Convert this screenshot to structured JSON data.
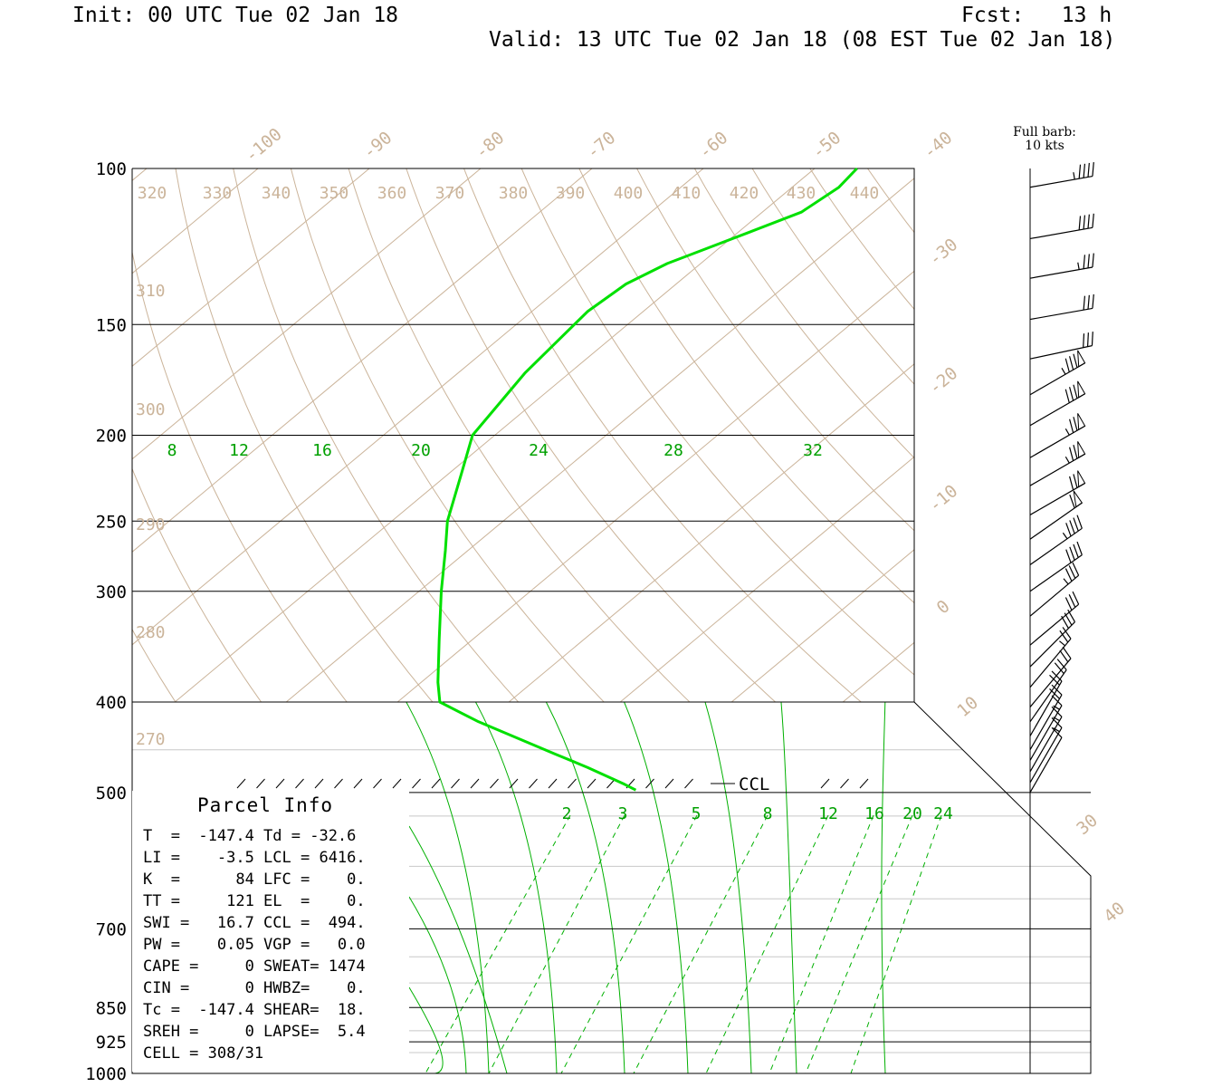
{
  "header": {
    "init": "Init: 00 UTC Tue 02 Jan 18",
    "fcst": "Fcst:   13 h",
    "valid": "Valid: 13 UTC Tue 02 Jan 18 (08 EST Tue 02 Jan 18)"
  },
  "barb_note": {
    "line1": "Full barb:",
    "line2": "10 kts"
  },
  "parcel_info": {
    "title": "Parcel Info",
    "rows": [
      "T  =  -147.4 Td = -32.6",
      "LI =    -3.5 LCL = 6416.",
      "K  =      84 LFC =    0.",
      "TT =     121 EL  =    0.",
      "SWI =   16.7 CCL =  494.",
      "PW =    0.05 VGP =   0.0",
      "CAPE =     0 SWEAT= 1474",
      "CIN =      0 HWBZ=    0.",
      "Tc =  -147.4 SHEAR=  18.",
      "SREH =     0 LAPSE=  5.4",
      "CELL = 308/31"
    ]
  },
  "chart_data": {
    "type": "line",
    "diagram": "skew-T log-p",
    "yaxis_pressure_hPa": [
      100,
      150,
      200,
      250,
      300,
      400,
      500,
      700,
      850,
      925,
      1000
    ],
    "isotherm_labels_C": [
      "-100",
      "-90",
      "-80",
      "-70",
      "-60",
      "-50",
      "-40",
      "-30",
      "-20",
      "-10",
      "0",
      "10",
      "30",
      "40"
    ],
    "isotherm_values_C": [
      -100,
      -90,
      -80,
      -70,
      -60,
      -50,
      -40,
      -30,
      -20,
      -10,
      0,
      10,
      30,
      40
    ],
    "theta_labels_K": [
      "320",
      "330",
      "340",
      "350",
      "360",
      "370",
      "380",
      "390",
      "400",
      "410",
      "420",
      "430",
      "440"
    ],
    "theta_left_labels_K": [
      "310",
      "300",
      "290",
      "280",
      "270"
    ],
    "moist_adiabat_labels": [
      "8",
      "12",
      "16",
      "20",
      "24",
      "28",
      "32"
    ],
    "mixing_ratio_labels": [
      "2",
      "3",
      "5",
      "8",
      "12",
      "16",
      "20",
      "24"
    ],
    "annotation": "CCL",
    "temperature_series": {
      "color": "#00e000",
      "points": [
        {
          "p": 100,
          "t": -46.2
        },
        {
          "p": 105,
          "t": -45.8
        },
        {
          "p": 112,
          "t": -46.5
        },
        {
          "p": 118,
          "t": -49
        },
        {
          "p": 128,
          "t": -53
        },
        {
          "p": 135,
          "t": -54.5
        },
        {
          "p": 145,
          "t": -55
        },
        {
          "p": 170,
          "t": -54
        },
        {
          "p": 200,
          "t": -52
        },
        {
          "p": 220,
          "t": -49
        },
        {
          "p": 250,
          "t": -45
        },
        {
          "p": 270,
          "t": -42
        },
        {
          "p": 300,
          "t": -38
        },
        {
          "p": 340,
          "t": -33
        },
        {
          "p": 380,
          "t": -28.5
        },
        {
          "p": 400,
          "t": -26.2
        },
        {
          "p": 420,
          "t": -24.5
        },
        {
          "p": 455,
          "t": -20.5
        },
        {
          "p": 470,
          "t": -18.8
        },
        {
          "p": 490,
          "t": -17
        },
        {
          "p": 497,
          "t": -16.5
        }
      ]
    },
    "wind_profile_kt": [
      {
        "p": 105,
        "dir": 280,
        "spd": 48
      },
      {
        "p": 120,
        "dir": 280,
        "spd": 42
      },
      {
        "p": 133,
        "dir": 280,
        "spd": 38
      },
      {
        "p": 148,
        "dir": 280,
        "spd": 34
      },
      {
        "p": 164,
        "dir": 282,
        "spd": 30
      },
      {
        "p": 180,
        "dir": 300,
        "spd": 85
      },
      {
        "p": 195,
        "dir": 300,
        "spd": 80
      },
      {
        "p": 212,
        "dir": 300,
        "spd": 75
      },
      {
        "p": 228,
        "dir": 300,
        "spd": 75
      },
      {
        "p": 246,
        "dir": 300,
        "spd": 70
      },
      {
        "p": 262,
        "dir": 305,
        "spd": 60
      },
      {
        "p": 280,
        "dir": 305,
        "spd": 45
      },
      {
        "p": 300,
        "dir": 305,
        "spd": 40
      },
      {
        "p": 320,
        "dir": 310,
        "spd": 35
      },
      {
        "p": 345,
        "dir": 310,
        "spd": 30
      },
      {
        "p": 365,
        "dir": 315,
        "spd": 30
      },
      {
        "p": 385,
        "dir": 320,
        "spd": 25
      },
      {
        "p": 405,
        "dir": 320,
        "spd": 20
      },
      {
        "p": 420,
        "dir": 325,
        "spd": 20
      },
      {
        "p": 435,
        "dir": 330,
        "spd": 20
      },
      {
        "p": 450,
        "dir": 330,
        "spd": 20
      },
      {
        "p": 462,
        "dir": 330,
        "spd": 15
      },
      {
        "p": 475,
        "dir": 330,
        "spd": 15
      },
      {
        "p": 488,
        "dir": 330,
        "spd": 15
      },
      {
        "p": 500,
        "dir": 330,
        "spd": 10
      }
    ],
    "colors": {
      "isobar": "#000000",
      "isotherm": "#cbb49a",
      "dry_adiabat": "#cbb49a",
      "moist_adiabat": "#00b000",
      "mixing_ratio": "#00b000",
      "labels_tan": "#cbb49a",
      "labels_green": "#00a000"
    }
  }
}
